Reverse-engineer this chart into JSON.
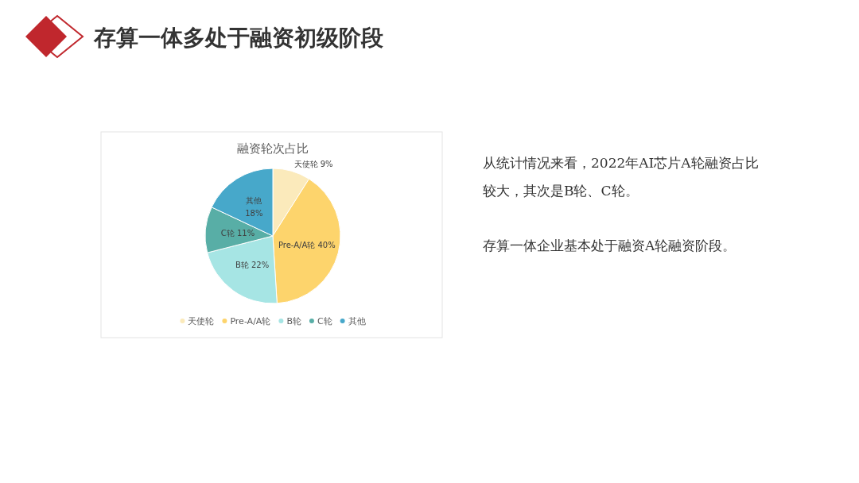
{
  "chart_data": {
    "type": "pie",
    "title": "存算一体多处于融资初级阶段",
    "subtitle": "融资轮次占比",
    "categories": [
      "天使轮",
      "Pre-A/A轮",
      "B轮",
      "C轮",
      "其他"
    ],
    "values": [
      9,
      40,
      22,
      11,
      18
    ],
    "colors": [
      "#fbeabb",
      "#fdd46c",
      "#a6e5e4",
      "#58aea6",
      "#47a8ca"
    ],
    "value_labels": [
      "天使轮 9%",
      "Pre-A/A轮 40%",
      "B轮 22%",
      "C轮 11%",
      "其他\n18%"
    ],
    "legend": "bottom",
    "annotations": [
      "从统计情况来看，2022年AI芯片A轮融资占比较大，其次是B轮、C轮。",
      "存算一体企业基本处于融资A轮融资阶段。"
    ]
  }
}
